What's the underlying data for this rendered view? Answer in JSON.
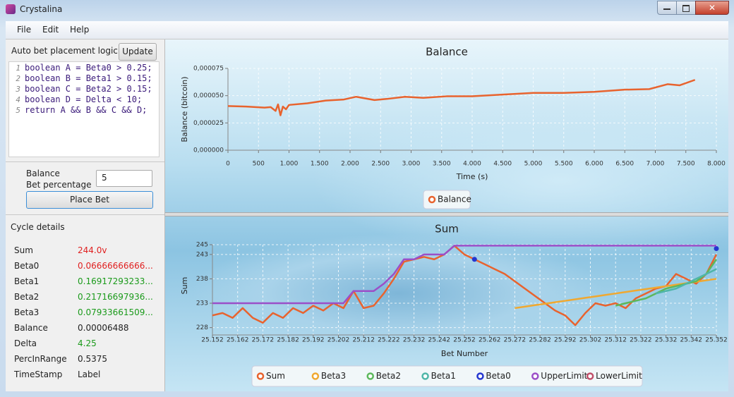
{
  "window": {
    "title": "Crystalina"
  },
  "menu": [
    "File",
    "Edit",
    "Help"
  ],
  "logic": {
    "header": "Auto bet placement logic",
    "update_button": "Update",
    "code": [
      {
        "n": "1",
        "text": "boolean A = Beta0 > 0.25;"
      },
      {
        "n": "2",
        "text": "boolean B = Beta1 > 0.15;"
      },
      {
        "n": "3",
        "text": "boolean C = Beta2 > 0.15;"
      },
      {
        "n": "4",
        "text": "boolean D = Delta < 10;"
      },
      {
        "n": "5",
        "text": "return A && B && C && D;"
      }
    ]
  },
  "bet": {
    "balance_label": "Balance",
    "percentage_label": "Bet percentage",
    "input": "5",
    "button": "Place Bet"
  },
  "cycle": {
    "header": "Cycle details",
    "rows": [
      {
        "label": "Sum",
        "value": "244.0v",
        "color": "#e02020"
      },
      {
        "label": "Beta0",
        "value": "0.06666666666...",
        "color": "#e02020"
      },
      {
        "label": "Beta1",
        "value": "0.16917293233...",
        "color": "#1a9a1a"
      },
      {
        "label": "Beta2",
        "value": "0.21716697936...",
        "color": "#1a9a1a"
      },
      {
        "label": "Beta3",
        "value": "0.07933661509...",
        "color": "#1a9a1a"
      },
      {
        "label": "Balance",
        "value": "0.00006488",
        "color": "#222222"
      },
      {
        "label": "Delta",
        "value": "4.25",
        "color": "#1a9a1a"
      },
      {
        "label": "PercInRange",
        "value": "0.5375",
        "color": "#222222"
      },
      {
        "label": "TimeStamp",
        "value": "Label",
        "color": "#222222"
      }
    ]
  },
  "chart_data": [
    {
      "type": "line",
      "title": "Balance",
      "x_label": "Time (s)",
      "y_label": "Balance (bitcoin)",
      "grid": true,
      "x": [
        0,
        300,
        600,
        700,
        780,
        820,
        860,
        900,
        950,
        1000,
        1300,
        1600,
        1900,
        2100,
        2400,
        2600,
        2900,
        3200,
        3600,
        4000,
        4500,
        5000,
        5500,
        6000,
        6500,
        6900,
        7200,
        7400,
        7650
      ],
      "series": [
        {
          "name": "Balance",
          "color": "#e8632e",
          "values": [
            4.05e-05,
            4e-05,
            3.9e-05,
            3.95e-05,
            3.6e-05,
            4.2e-05,
            3.2e-05,
            4e-05,
            3.75e-05,
            4.15e-05,
            4.3e-05,
            4.55e-05,
            4.65e-05,
            4.9e-05,
            4.6e-05,
            4.7e-05,
            4.9e-05,
            4.8e-05,
            4.95e-05,
            4.95e-05,
            5.1e-05,
            5.25e-05,
            5.25e-05,
            5.35e-05,
            5.55e-05,
            5.6e-05,
            6.05e-05,
            5.95e-05,
            6.45e-05
          ]
        }
      ],
      "xlim": [
        0,
        8000
      ],
      "xticks": [
        0,
        500,
        {
          "value": 1000,
          "label": "1.000"
        },
        {
          "value": 1500,
          "label": "1.500"
        },
        {
          "value": 2000,
          "label": "2.000"
        },
        {
          "value": 2500,
          "label": "2.500"
        },
        {
          "value": 3000,
          "label": "3.000"
        },
        {
          "value": 3500,
          "label": "3.500"
        },
        {
          "value": 4000,
          "label": "4.000"
        },
        {
          "value": 4500,
          "label": "4.500"
        },
        {
          "value": 5000,
          "label": "5.000"
        },
        {
          "value": 5500,
          "label": "5.500"
        },
        {
          "value": 6000,
          "label": "6.000"
        },
        {
          "value": 6500,
          "label": "6.500"
        },
        {
          "value": 7000,
          "label": "7.000"
        },
        {
          "value": 7500,
          "label": "7.500"
        },
        {
          "value": 8000,
          "label": "8.000"
        }
      ],
      "ylim": [
        0,
        7.5e-05
      ],
      "yticks": [
        {
          "value": 0,
          "label": "0,000000"
        },
        {
          "value": 2.5e-05,
          "label": "0,000025"
        },
        {
          "value": 5e-05,
          "label": "0,000050"
        },
        {
          "value": 7.5e-05,
          "label": "0,000075"
        }
      ]
    },
    {
      "type": "line",
      "title": "Sum",
      "x_label": "Bet Number",
      "y_label": "Sum",
      "grid": true,
      "x": [
        25152,
        25156,
        25160,
        25164,
        25168,
        25172,
        25176,
        25180,
        25184,
        25188,
        25192,
        25196,
        25200,
        25204,
        25208,
        25212,
        25216,
        25220,
        25224,
        25228,
        25232,
        25236,
        25240,
        25244,
        25248,
        25252,
        25256,
        25260,
        25264,
        25268,
        25272,
        25276,
        25280,
        25284,
        25288,
        25292,
        25296,
        25300,
        25304,
        25308,
        25312,
        25316,
        25320,
        25324,
        25328,
        25332,
        25336,
        25340,
        25344,
        25348,
        25352
      ],
      "series": [
        {
          "name": "Sum",
          "color": "#e8632e",
          "values": [
            230.5,
            231,
            230,
            232,
            230,
            229,
            231,
            230,
            232,
            231,
            232.5,
            231.5,
            233,
            232,
            235.5,
            232,
            232.5,
            235,
            238,
            241.5,
            242,
            242.5,
            242,
            243,
            244.8,
            243,
            242,
            241,
            240,
            239,
            237.5,
            236,
            234.5,
            233,
            231.5,
            230.5,
            228.5,
            231,
            233,
            232.5,
            233,
            232,
            234,
            235,
            236,
            236.5,
            239,
            238,
            237,
            239,
            243
          ]
        },
        {
          "name": "Beta3",
          "color": "#f0a830",
          "values": [
            null,
            null,
            null,
            null,
            null,
            null,
            null,
            null,
            null,
            null,
            null,
            null,
            null,
            null,
            null,
            null,
            null,
            null,
            null,
            null,
            null,
            null,
            null,
            null,
            null,
            null,
            null,
            null,
            null,
            null,
            232,
            232.3,
            232.6,
            232.9,
            233.2,
            233.5,
            233.8,
            234.1,
            234.4,
            234.7,
            235,
            235.3,
            235.6,
            235.9,
            236.2,
            236.5,
            236.8,
            237.1,
            237.4,
            237.7,
            238
          ]
        },
        {
          "name": "Beta2",
          "color": "#5cb85c",
          "values": [
            null,
            null,
            null,
            null,
            null,
            null,
            null,
            null,
            null,
            null,
            null,
            null,
            null,
            null,
            null,
            null,
            null,
            null,
            null,
            null,
            null,
            null,
            null,
            null,
            null,
            null,
            null,
            null,
            null,
            null,
            null,
            null,
            null,
            null,
            null,
            null,
            null,
            null,
            null,
            null,
            232.5,
            233,
            233.5,
            234,
            235,
            236,
            236.5,
            237,
            237.5,
            239,
            242
          ]
        },
        {
          "name": "Beta1",
          "color": "#4fb6a8",
          "values": [
            null,
            null,
            null,
            null,
            null,
            null,
            null,
            null,
            null,
            null,
            null,
            null,
            null,
            null,
            null,
            null,
            null,
            null,
            null,
            null,
            null,
            null,
            null,
            null,
            null,
            null,
            null,
            null,
            null,
            null,
            null,
            null,
            null,
            null,
            null,
            null,
            null,
            null,
            null,
            null,
            null,
            null,
            null,
            null,
            235,
            235.5,
            236,
            237,
            238,
            239,
            240
          ]
        },
        {
          "name": "Beta0",
          "color": "#2436d0",
          "values": [
            null,
            null,
            null,
            null,
            null,
            null,
            null,
            null,
            null,
            null,
            null,
            null,
            null,
            null,
            null,
            null,
            null,
            null,
            null,
            null,
            null,
            null,
            null,
            null,
            null,
            null,
            242,
            null,
            null,
            null,
            null,
            null,
            null,
            null,
            null,
            null,
            null,
            null,
            null,
            null,
            null,
            null,
            null,
            null,
            null,
            null,
            null,
            null,
            null,
            null,
            244.2
          ]
        },
        {
          "name": "UpperLimit",
          "color": "#9b4fc8",
          "values": [
            233,
            233,
            233,
            233,
            233,
            233,
            233,
            233,
            233,
            233,
            233,
            233,
            233,
            233,
            235.5,
            235.5,
            235.5,
            237,
            239,
            242,
            242,
            243,
            243,
            243,
            244.8,
            244.8,
            244.8,
            244.8,
            244.8,
            244.8,
            244.8,
            244.8,
            244.8,
            244.8,
            244.8,
            244.8,
            244.8,
            244.8,
            244.8,
            244.8,
            244.8,
            244.8,
            244.8,
            244.8,
            244.8,
            244.8,
            244.8,
            244.8,
            244.8,
            244.8,
            244.8
          ]
        },
        {
          "name": "LowerLimit",
          "color": "#c0506a",
          "values": [
            null,
            null,
            null,
            null,
            null,
            null,
            null,
            null,
            null,
            null,
            null,
            null,
            null,
            null,
            null,
            null,
            null,
            null,
            null,
            null,
            null,
            null,
            null,
            null,
            null,
            null,
            null,
            null,
            null,
            null,
            null,
            null,
            null,
            null,
            null,
            null,
            null,
            null,
            null,
            null,
            null,
            null,
            null,
            null,
            null,
            null,
            null,
            null,
            null,
            null,
            null
          ]
        }
      ],
      "xlim": [
        25152,
        25352
      ],
      "xticks": [
        {
          "value": 25152,
          "label": "25.152"
        },
        {
          "value": 25162,
          "label": "25.162"
        },
        {
          "value": 25172,
          "label": "25.172"
        },
        {
          "value": 25182,
          "label": "25.182"
        },
        {
          "value": 25192,
          "label": "25.192"
        },
        {
          "value": 25202,
          "label": "25.202"
        },
        {
          "value": 25212,
          "label": "25.212"
        },
        {
          "value": 25222,
          "label": "25.222"
        },
        {
          "value": 25232,
          "label": "25.232"
        },
        {
          "value": 25242,
          "label": "25.242"
        },
        {
          "value": 25252,
          "label": "25.252"
        },
        {
          "value": 25262,
          "label": "25.262"
        },
        {
          "value": 25272,
          "label": "25.272"
        },
        {
          "value": 25282,
          "label": "25.282"
        },
        {
          "value": 25292,
          "label": "25.292"
        },
        {
          "value": 25302,
          "label": "25.302"
        },
        {
          "value": 25312,
          "label": "25.312"
        },
        {
          "value": 25322,
          "label": "25.322"
        },
        {
          "value": 25332,
          "label": "25.332"
        },
        {
          "value": 25342,
          "label": "25.342"
        },
        {
          "value": 25352,
          "label": "25.352"
        }
      ],
      "ylim": [
        226.5,
        245
      ],
      "yticks": [
        228,
        233,
        238,
        243,
        245
      ]
    }
  ]
}
